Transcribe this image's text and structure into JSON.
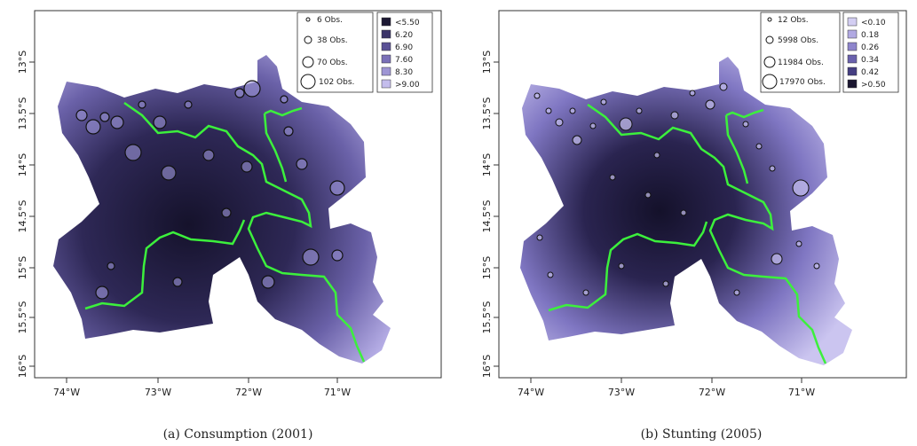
{
  "panels": [
    {
      "id": "a",
      "caption": "(a) Consumption (2001)",
      "x_ticks": [
        "74°W",
        "73°W",
        "72°W",
        "71°W"
      ],
      "y_ticks": [
        "13°S",
        "13.5°S",
        "14°S",
        "14.5°S",
        "15°S",
        "15.5°S",
        "16°S"
      ],
      "size_legend": [
        "6 Obs.",
        "38 Obs.",
        "70 Obs.",
        "102 Obs."
      ],
      "color_legend": [
        "<5.50",
        "6.20",
        "6.90",
        "7.60",
        "8.30",
        ">9.00"
      ],
      "color_scale": [
        "#1c1833",
        "#3b3468",
        "#5a5195",
        "#7a70b8",
        "#9e95d4",
        "#c4bdec"
      ],
      "dark_zone": "center"
    },
    {
      "id": "b",
      "caption": "(b) Stunting (2005)",
      "x_ticks": [
        "74°W",
        "73°W",
        "72°W",
        "71°W"
      ],
      "y_ticks": [
        "13°S",
        "13.5°S",
        "14°S",
        "14.5°S",
        "15°S",
        "15.5°S",
        "16°S"
      ],
      "size_legend": [
        "12 Obs.",
        "5998 Obs.",
        "11984 Obs.",
        "17970 Obs."
      ],
      "color_legend": [
        "<0.10",
        "0.18",
        "0.26",
        "0.34",
        "0.42",
        ">0.50"
      ],
      "color_scale": [
        "#d3cef2",
        "#b1a9e2",
        "#8e85cc",
        "#6a61ad",
        "#453e82",
        "#1a1630"
      ],
      "dark_zone": "center"
    }
  ],
  "colors": {
    "border_line": "#3cf03c",
    "axis": "#333333",
    "marker_stroke": "#111111"
  }
}
